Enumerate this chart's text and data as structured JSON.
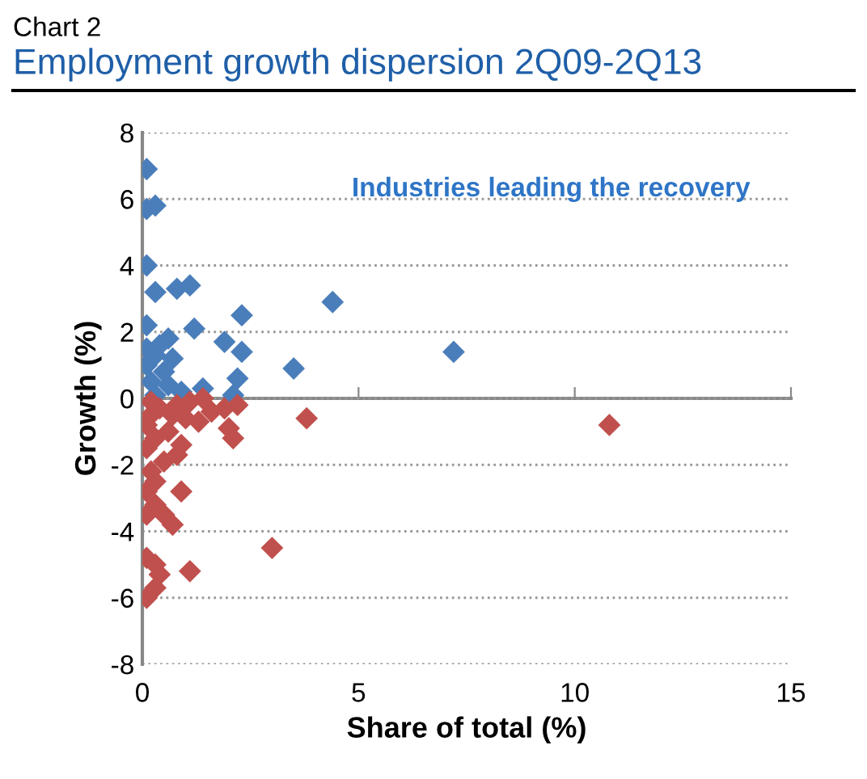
{
  "chart_data": {
    "type": "scatter",
    "subtitle": "Chart 2",
    "title": "Employment growth dispersion 2Q09-2Q13",
    "xlabel": "Share of total (%)",
    "ylabel": "Growth (%)",
    "annotations": [
      "Industries leading the recovery"
    ],
    "xlim": [
      0,
      15
    ],
    "xticks": [
      0,
      5,
      10,
      15
    ],
    "ylim": [
      -8,
      8
    ],
    "yticks": [
      -8,
      -6,
      -4,
      -2,
      0,
      2,
      4,
      6,
      8
    ],
    "grid": "y",
    "marker": "diamond",
    "legend": false,
    "series": [
      {
        "color": "#4a7ebb",
        "x": [
          0.1,
          0.1,
          0.3,
          0.1,
          0.3,
          0.8,
          1.1,
          0.1,
          1.2,
          2.3,
          4.4,
          1.9,
          2.3,
          7.2,
          3.5,
          2.2,
          0.6,
          0.1,
          0.3,
          0.1,
          0.5,
          0.2,
          1.4,
          0.9,
          0.6,
          0.4,
          0.7,
          0.3,
          2.1
        ],
        "values": [
          6.9,
          5.7,
          5.8,
          4.0,
          3.2,
          3.3,
          3.4,
          2.2,
          2.1,
          2.5,
          2.9,
          1.7,
          1.4,
          1.4,
          0.9,
          0.6,
          1.8,
          1.5,
          1.3,
          1.0,
          0.8,
          0.5,
          0.3,
          0.2,
          0.4,
          1.6,
          1.2,
          0.1,
          0.1
        ]
      },
      {
        "color": "#c0504d",
        "x": [
          10.8,
          3.8,
          3.0,
          1.1,
          0.9,
          0.7,
          0.5,
          0.1,
          0.3,
          0.4,
          0.3,
          0.1,
          0.1,
          0.3,
          0.1,
          0.2,
          0.3,
          0.5,
          0.3,
          0.1,
          0.6,
          0.1,
          0.2,
          0.4,
          0.8,
          1.1,
          1.4,
          1.6,
          0.2,
          1.0,
          2.0,
          2.1,
          2.2,
          0.8,
          1.3,
          1.9,
          0.9,
          0.7
        ],
        "values": [
          -0.8,
          -0.6,
          -4.5,
          -5.2,
          -2.8,
          -3.8,
          -3.5,
          -4.8,
          -5.0,
          -5.3,
          -5.7,
          -6.0,
          -3.5,
          -3.2,
          -2.8,
          -2.2,
          -2.5,
          -1.9,
          -1.2,
          -1.5,
          -1.0,
          -0.8,
          -0.5,
          -0.3,
          -0.2,
          -0.1,
          0.0,
          -0.4,
          -0.1,
          -0.6,
          -0.9,
          -1.2,
          -0.2,
          -1.7,
          -0.7,
          -0.3,
          -1.4,
          -0.5
        ]
      }
    ]
  }
}
